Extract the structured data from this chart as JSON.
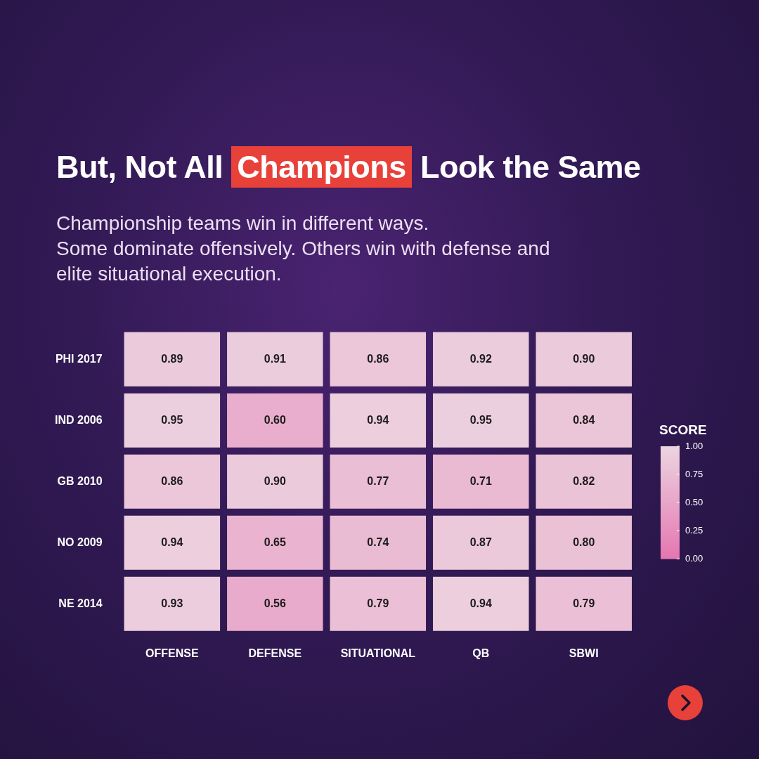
{
  "chart_data": {
    "type": "heatmap",
    "title": "But, Not All Champions Look the Same",
    "subtitle": "Championship teams win in different ways.\nSome dominate offensively. Others win with defense and\nelite situational execution.",
    "categories": [
      "OFFENSE",
      "DEFENSE",
      "SITUATIONAL",
      "QB",
      "SBWI"
    ],
    "y_categories": [
      "PHI 2017",
      "IND 2006",
      "GB 2010",
      "NO 2009",
      "NE 2014"
    ],
    "cells": [
      [
        0.89,
        0.91,
        0.86,
        0.92,
        0.9
      ],
      [
        0.95,
        0.6,
        0.94,
        0.95,
        0.84
      ],
      [
        0.86,
        0.9,
        0.77,
        0.71,
        0.82
      ],
      [
        0.94,
        0.65,
        0.74,
        0.87,
        0.8
      ],
      [
        0.93,
        0.56,
        0.79,
        0.94,
        0.79
      ]
    ],
    "clabel": "SCORE",
    "clim": [
      0,
      1
    ],
    "cticks": [
      {
        "value": 0,
        "label": "0.00"
      },
      {
        "value": 0.25,
        "label": "0.25"
      },
      {
        "value": 0.5,
        "label": "0.50"
      },
      {
        "value": 0.75,
        "label": "0.75"
      },
      {
        "value": 1,
        "label": "1.00"
      }
    ],
    "cell_labels": [
      [
        "0.89",
        "0.91",
        "0.86",
        "0.92",
        "0.90"
      ],
      [
        "0.95",
        "0.60",
        "0.94",
        "0.95",
        "0.84"
      ],
      [
        "0.86",
        "0.90",
        "0.77",
        "0.71",
        "0.82"
      ],
      [
        "0.94",
        "0.65",
        "0.74",
        "0.87",
        "0.80"
      ],
      [
        "0.93",
        "0.56",
        "0.79",
        "0.94",
        "0.79"
      ]
    ]
  }
}
